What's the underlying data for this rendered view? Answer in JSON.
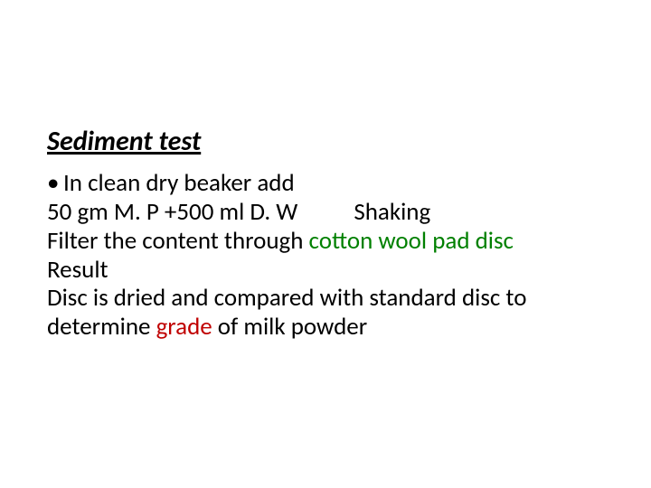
{
  "colors": {
    "background": "#ffffff",
    "text": "#000000",
    "accent_green": "#008000",
    "accent_red": "#c00000"
  },
  "typography": {
    "title_fontsize": 30,
    "body_fontsize": 27,
    "title_style": "italic bold underline"
  },
  "title": "Sediment test",
  "bullet": {
    "marker": "•",
    "text": "In clean dry beaker add"
  },
  "line2": {
    "part_a": "50 gm M. P +500 ml D. W",
    "part_b": "Shaking"
  },
  "line3": {
    "a": "Filter the content through ",
    "b": "cotton wool pad disc"
  },
  "line4": "Result",
  "line5": {
    "a": "Disc is dried and compared with standard disc to determine ",
    "b": "grade",
    "c": " of milk powder"
  }
}
